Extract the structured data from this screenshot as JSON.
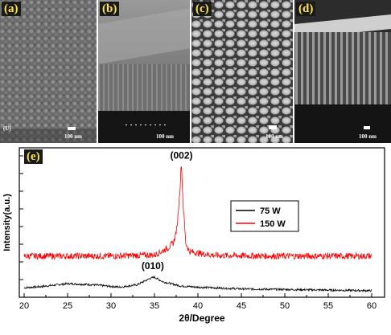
{
  "panels": [
    {
      "label": "(a)",
      "scale": "100 nm",
      "corner_text": "(U)"
    },
    {
      "label": "(b)",
      "scale": "100 nm"
    },
    {
      "label": "(c)",
      "scale": "100 nm"
    },
    {
      "label": "(d)",
      "scale": "100 nm"
    }
  ],
  "plot_label": "(e)",
  "chart_data": {
    "type": "line",
    "xlabel": "2θ/Degree",
    "ylabel": "Intensity(a.u.)",
    "xlim": [
      20,
      60
    ],
    "xticks": [
      20,
      25,
      30,
      35,
      40,
      45,
      50,
      55,
      60
    ],
    "legend_placement": "center-right",
    "series": [
      {
        "name": "75 W",
        "color": "#000000",
        "points": [
          [
            20,
            0.8
          ],
          [
            22,
            1.0
          ],
          [
            25,
            1.5
          ],
          [
            28,
            1.3
          ],
          [
            31,
            0.9
          ],
          [
            33,
            1.3
          ],
          [
            34.5,
            2.4
          ],
          [
            35,
            2.6
          ],
          [
            36,
            1.8
          ],
          [
            38,
            1.1
          ],
          [
            40,
            0.9
          ],
          [
            45,
            0.6
          ],
          [
            50,
            0.5
          ],
          [
            55,
            0.4
          ],
          [
            60,
            0.3
          ]
        ]
      },
      {
        "name": "150 W",
        "color": "#ff0000",
        "points": [
          [
            20,
            6.2
          ],
          [
            30,
            6.2
          ],
          [
            35,
            6.4
          ],
          [
            36.5,
            7.5
          ],
          [
            37.2,
            8.5
          ],
          [
            37.6,
            11
          ],
          [
            37.9,
            17
          ],
          [
            38.1,
            22
          ],
          [
            38.3,
            15
          ],
          [
            38.6,
            8.5
          ],
          [
            39,
            7.0
          ],
          [
            40,
            6.7
          ],
          [
            42,
            6.3
          ],
          [
            50,
            6.2
          ],
          [
            60,
            6.2
          ]
        ]
      }
    ],
    "annotations": [
      {
        "text": "(002)",
        "x": 38.1,
        "y": 22
      },
      {
        "text": "(010)",
        "x": 34.8,
        "y": 2.6
      }
    ]
  }
}
